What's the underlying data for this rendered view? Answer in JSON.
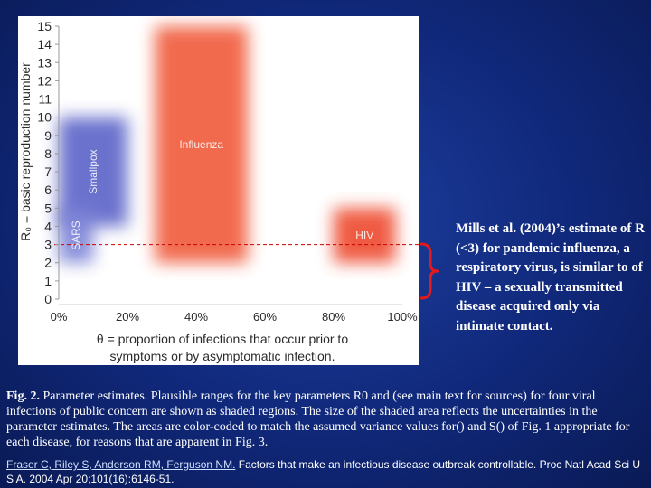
{
  "chart_data": {
    "type": "area",
    "xlabel_line1": "θ = proportion of infections that occur prior to",
    "xlabel_line2": "symptoms or by asymptomatic infection.",
    "ylabel": "R₀ = basic reproduction number",
    "xlim": [
      0,
      100
    ],
    "ylim": [
      0,
      15
    ],
    "xticks": [
      "0%",
      "20%",
      "40%",
      "60%",
      "80%",
      "100%"
    ],
    "yticks": [
      "0",
      "1",
      "2",
      "3",
      "4",
      "5",
      "6",
      "7",
      "8",
      "9",
      "10",
      "11",
      "12",
      "13",
      "14",
      "15"
    ],
    "regions": [
      {
        "label": "Smallpox",
        "theta": [
          0,
          20
        ],
        "r0": [
          4,
          10
        ],
        "color": "#5b63c8",
        "label_rotated": true
      },
      {
        "label": "SARS",
        "theta": [
          0,
          10
        ],
        "r0": [
          2,
          5
        ],
        "color": "#7a82d6",
        "label_rotated": true
      },
      {
        "label": "Influenza",
        "theta": [
          28,
          55
        ],
        "r0": [
          2,
          15
        ],
        "color": "#f05a3a",
        "label_rotated": false
      },
      {
        "label": "HIV",
        "theta": [
          80,
          98
        ],
        "r0": [
          2,
          5
        ],
        "color": "#ee4a2e",
        "label_rotated": false
      }
    ],
    "reference_line": {
      "r0": 3,
      "color": "#cc0000",
      "style": "dashed"
    }
  },
  "side_note": "Mills et al. (2004)’s estimate of R (<3) for pandemic influenza, a respiratory virus, is similar to of HIV – a sexually transmitted disease acquired only via intimate contact.",
  "caption": {
    "fig_label": "Fig. 2.",
    "text": " Parameter estimates. Plausible ranges for the key parameters R0 and (see main text for sources) for four viral infections of public concern are shown as shaded regions. The size of the shaded area reflects the uncertainties in the parameter estimates. The areas are color-coded to match the assumed variance values for() and S() of Fig. 1 appropriate for each disease, for reasons that are apparent in Fig. 3."
  },
  "citation": {
    "authors_link": "Fraser C, Riley S, Anderson RM, Ferguson NM.",
    "text": " Factors that make an infectious disease outbreak controllable. Proc Natl Acad Sci U S A. 2004 Apr 20;101(16):6146-51."
  }
}
